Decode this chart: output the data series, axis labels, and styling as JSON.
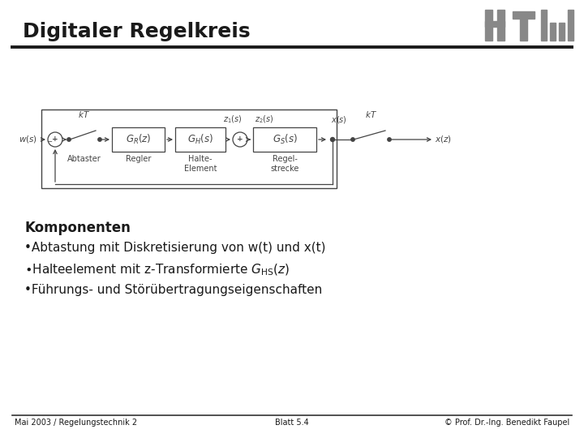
{
  "title": "Digitaler Regelkreis",
  "background_color": "#ffffff",
  "title_fontsize": 18,
  "footer_left": "Mai 2003 / Regelungstechnik 2",
  "footer_center": "Blatt 5.4",
  "footer_right": "© Prof. Dr.-Ing. Benedikt Faupel",
  "komponenten_label": "Komponenten",
  "bullet1": "•Abtastung mit Diskretisierung von w(t) und x(t)",
  "bullet3": "•Führungs- und Störübertragungseigenschaften",
  "text_color": "#1a1a1a",
  "diagram_color": "#444444",
  "htw_color": "#888888",
  "line_color": "#333333"
}
